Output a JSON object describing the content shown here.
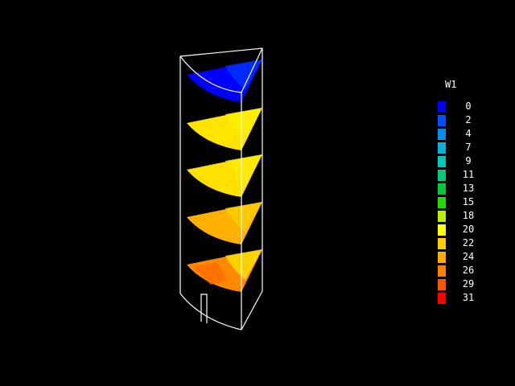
{
  "legend": {
    "title": "W1",
    "entries": [
      {
        "label": "0",
        "color": "#0000ff"
      },
      {
        "label": "2",
        "color": "#0050ff"
      },
      {
        "label": "4",
        "color": "#0090ee"
      },
      {
        "label": "7",
        "color": "#00b4dd"
      },
      {
        "label": "9",
        "color": "#00c8b8"
      },
      {
        "label": "11",
        "color": "#00cc77"
      },
      {
        "label": "13",
        "color": "#00cc33"
      },
      {
        "label": "15",
        "color": "#22dd00"
      },
      {
        "label": "18",
        "color": "#bbee00"
      },
      {
        "label": "20",
        "color": "#ffff00"
      },
      {
        "label": "22",
        "color": "#ffcc00"
      },
      {
        "label": "24",
        "color": "#ffaa00"
      },
      {
        "label": "26",
        "color": "#ff8000"
      },
      {
        "label": "29",
        "color": "#ff5500"
      },
      {
        "label": "31",
        "color": "#ff0000"
      }
    ]
  },
  "slices": [
    {
      "name": "slice-1",
      "base_color": "#0000ff",
      "patch_color": "#0030ff"
    },
    {
      "name": "slice-2",
      "base_color": "#ffe400",
      "patch_color": "#ffee00"
    },
    {
      "name": "slice-3",
      "base_color": "#ffe000",
      "patch_color": "#ffea00"
    },
    {
      "name": "slice-4",
      "base_color": "#ffb000",
      "patch_color": "#ffcc00"
    },
    {
      "name": "slice-5",
      "base_color": "#ff8a00",
      "patch_color": "#ffdd00"
    }
  ]
}
